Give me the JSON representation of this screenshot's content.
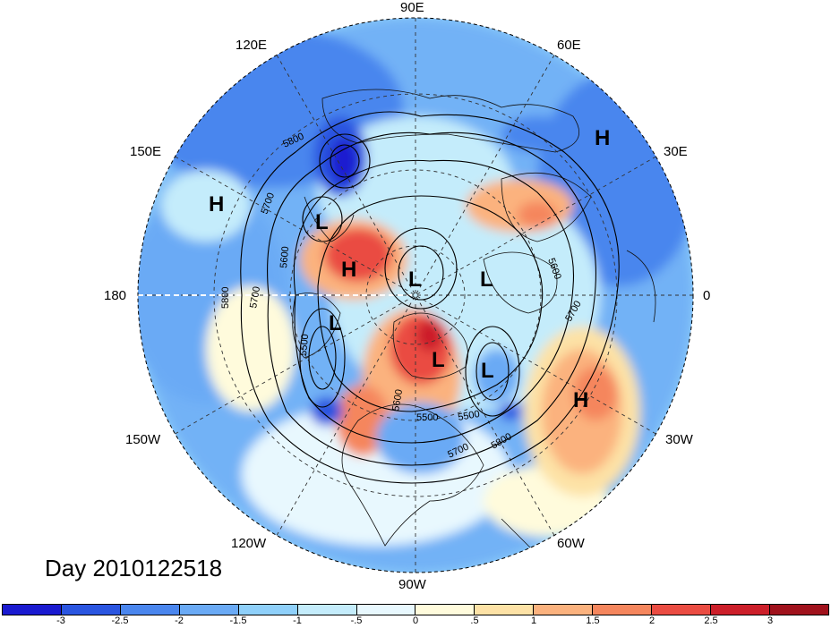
{
  "title": "Day 2010122518",
  "longitude_labels": {
    "90E": "90E",
    "60E": "60E",
    "30E": "30E",
    "0": "0",
    "30W": "30W",
    "60W": "60W",
    "90W": "90W",
    "120W": "120W",
    "150W": "150W",
    "180": "180",
    "150E": "150E",
    "120E": "120E"
  },
  "pressure_centers": [
    {
      "id": "h-pacific-west",
      "label": "H"
    },
    {
      "id": "h-europe-north",
      "label": "H"
    },
    {
      "id": "h-alaska",
      "label": "H"
    },
    {
      "id": "h-atlantic",
      "label": "H"
    },
    {
      "id": "l-kamchatka",
      "label": "L"
    },
    {
      "id": "l-arctic",
      "label": "L"
    },
    {
      "id": "l-scandinavia",
      "label": "L"
    },
    {
      "id": "l-alaska-south",
      "label": "L"
    },
    {
      "id": "l-canada",
      "label": "L"
    },
    {
      "id": "l-labrador",
      "label": "L"
    }
  ],
  "contour_labels": [
    "5800",
    "5700",
    "5600",
    "5800",
    "5700",
    "5500",
    "5500",
    "5600",
    "5500",
    "5700",
    "5800",
    "5600",
    "5700"
  ],
  "colorbar": {
    "colors": [
      "#1a1ad0",
      "#2a55e0",
      "#4a86ee",
      "#6aaaf5",
      "#8fd0fa",
      "#c4ecfb",
      "#e8f8fe",
      "#fffbdc",
      "#fde2a6",
      "#fbb27e",
      "#f5865d",
      "#ea4c42",
      "#cc1f2a",
      "#a0121c"
    ],
    "tick_labels": [
      "-3",
      "-2.5",
      "-2",
      "-1.5",
      "-1",
      "-.5",
      "0",
      ".5",
      "1",
      "1.5",
      "2",
      "2.5",
      "3"
    ]
  }
}
